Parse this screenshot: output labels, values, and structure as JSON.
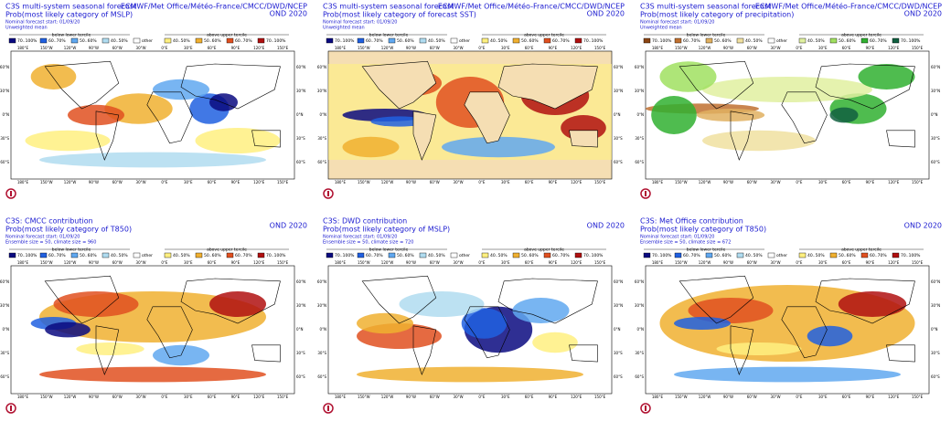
{
  "lon_labels": [
    "180°E",
    "150°W",
    "120°W",
    "90°W",
    "60°W",
    "30°W",
    "0°E",
    "30°E",
    "60°E",
    "90°E",
    "120°E",
    "150°E"
  ],
  "lat_labels": [
    "60°N",
    "30°N",
    "0°N",
    "30°S",
    "60°S"
  ],
  "legend_header": [
    "below lower tercile",
    "above upper tercile"
  ],
  "legend_labels": [
    "70..100%",
    "60..70%",
    "50..60%",
    "40..50%",
    "other",
    "40..50%",
    "50..60%",
    "60..70%",
    "70..100%"
  ],
  "panels": [
    {
      "title": "C3S multi-system seasonal forecast",
      "source": "ECMWF/Met Office/Météo-France/CMCC/DWD/NCEP",
      "season": "OND 2020",
      "lines": [
        "Prob(most likely category of MSLP)",
        "Nominal forecast start: 01/09/20",
        "Unweighted mean"
      ],
      "colors": [
        "#0a0a80",
        "#2060e0",
        "#60a8f0",
        "#b0dcf0",
        "#ffffff",
        "#fff080",
        "#f0b030",
        "#e05020",
        "#b01010"
      ]
    },
    {
      "title": "C3S multi-system seasonal forecast",
      "source": "ECMWF/Met Office/Météo-France/CMCC/DWD/NCEP",
      "season": "OND 2020",
      "lines": [
        "Prob(most likely category of forecast SST)",
        "Nominal forecast start: 01/09/20",
        "Unweighted mean"
      ],
      "colors": [
        "#0a0a80",
        "#2060e0",
        "#60a8f0",
        "#b0dcf0",
        "#ffffff",
        "#fff080",
        "#f0b030",
        "#e05020",
        "#b01010"
      ]
    },
    {
      "title": "C3S multi-system seasonal forecast",
      "source": "ECMWF/Met Office/Météo-France/CMCC/DWD/NCEP",
      "season": "OND 2020",
      "lines": [
        "Prob(most likely category of precipitation)",
        "Nominal forecast start: 01/09/20",
        "Unweighted mean"
      ],
      "colors": [
        "#8b4513",
        "#c07030",
        "#e0b060",
        "#f0e0a0",
        "#ffffff",
        "#e0f0a0",
        "#a0e060",
        "#30b030",
        "#106040"
      ]
    },
    {
      "title": "C3S: CMCC contribution",
      "season": "OND 2020",
      "lines": [
        "Prob(most likely category of T850)",
        "Nominal forecast start: 01/09/20",
        "Ensemble size = 50, climate size = 960"
      ],
      "colors": [
        "#0a0a80",
        "#2060e0",
        "#60a8f0",
        "#b0dcf0",
        "#ffffff",
        "#fff080",
        "#f0b030",
        "#e05020",
        "#b01010"
      ]
    },
    {
      "title": "C3S: DWD contribution",
      "season": "OND 2020",
      "lines": [
        "Prob(most likely category of MSLP)",
        "Nominal forecast start: 01/09/20",
        "Ensemble size = 50, climate size = 720"
      ],
      "colors": [
        "#0a0a80",
        "#2060e0",
        "#60a8f0",
        "#b0dcf0",
        "#ffffff",
        "#fff080",
        "#f0b030",
        "#e05020",
        "#b01010"
      ]
    },
    {
      "title": "C3S: Met Office contribution",
      "season": "OND 2020",
      "lines": [
        "Prob(most likely category of T850)",
        "Nominal forecast start: 01/09/20",
        "Ensemble size = 50, climate size = 672"
      ],
      "colors": [
        "#0a0a80",
        "#2060e0",
        "#60a8f0",
        "#b0dcf0",
        "#ffffff",
        "#fff080",
        "#f0b030",
        "#e05020",
        "#b01010"
      ]
    }
  ]
}
